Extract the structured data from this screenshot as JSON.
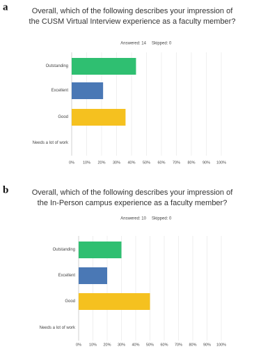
{
  "chart_data": [
    {
      "type": "bar",
      "orientation": "horizontal",
      "panel": "a",
      "title": "Overall, which of the following describes your impression of the CUSM Virtual Interview experience as a faculty member?",
      "answered": "Answered: 14",
      "skipped": "Skipped: 0",
      "categories": [
        "Outstanding",
        "Excellent",
        "Good",
        "Needs a lot of work"
      ],
      "values": [
        43,
        21,
        36,
        0
      ],
      "colors": [
        "#2fbf71",
        "#4a78b5",
        "#f5c11f",
        "#999999"
      ],
      "xlim": [
        0,
        100
      ],
      "xticks": [
        {
          "value": 0,
          "label": "0%"
        },
        {
          "value": 10,
          "label": "10%"
        },
        {
          "value": 20,
          "label": "20%"
        },
        {
          "value": 30,
          "label": "30%"
        },
        {
          "value": 40,
          "label": "40%"
        },
        {
          "value": 50,
          "label": "50%"
        },
        {
          "value": 60,
          "label": "60%"
        },
        {
          "value": 70,
          "label": "70%"
        },
        {
          "value": 80,
          "label": "80%"
        },
        {
          "value": 90,
          "label": "90%"
        },
        {
          "value": 100,
          "label": "100%"
        }
      ],
      "grid": true
    },
    {
      "type": "bar",
      "orientation": "horizontal",
      "panel": "b",
      "title": "Overall, which of the following describes your impression of the In-Person campus experience as a faculty member?",
      "answered": "Answered: 10",
      "skipped": "Skipped: 0",
      "categories": [
        "Outstanding",
        "Excellent",
        "Good",
        "Needs a lot of work"
      ],
      "values": [
        30,
        20,
        50,
        0
      ],
      "colors": [
        "#2fbf71",
        "#4a78b5",
        "#f5c11f",
        "#999999"
      ],
      "xlim": [
        0,
        100
      ],
      "xticks": [
        {
          "value": 0,
          "label": "0%"
        },
        {
          "value": 10,
          "label": "10%"
        },
        {
          "value": 20,
          "label": "20%"
        },
        {
          "value": 30,
          "label": "30%"
        },
        {
          "value": 40,
          "label": "40%"
        },
        {
          "value": 50,
          "label": "50%"
        },
        {
          "value": 60,
          "label": "60%"
        },
        {
          "value": 70,
          "label": "70%"
        },
        {
          "value": 80,
          "label": "80%"
        },
        {
          "value": 90,
          "label": "90%"
        },
        {
          "value": 100,
          "label": "100%"
        }
      ],
      "grid": true
    }
  ]
}
